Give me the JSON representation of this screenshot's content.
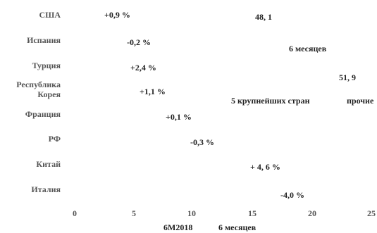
{
  "chart_data": {
    "type": "bar",
    "categories": [
      "США",
      "Испания",
      "Турция",
      "Республика\nКорея",
      "Франция",
      "РФ",
      "Китай",
      "Италия"
    ],
    "values": [
      0.9,
      -0.2,
      2.4,
      1.1,
      0.1,
      -0.3,
      4.6,
      -4.0
    ],
    "value_labels": [
      "+0,9 %",
      "-0,2 %",
      "+2,4 %",
      "+1,1 %",
      "+0,1 %",
      "-0,3 %",
      "+ 4, 6  %",
      "-4,0 %"
    ],
    "x_ticks": [
      "0",
      "5",
      "10",
      "15",
      "20",
      "25"
    ],
    "xlim": [
      0,
      25
    ],
    "bar_color": "#ffffff",
    "annotations": {
      "value_48": "48, 1",
      "label_6m": "6 месяцев",
      "value_51": "51, 9",
      "label_top5": "5  крупнейших стран",
      "label_other": "прочие",
      "footer_6m2018": "6М2018",
      "footer_6m": "6 месяцев"
    }
  }
}
